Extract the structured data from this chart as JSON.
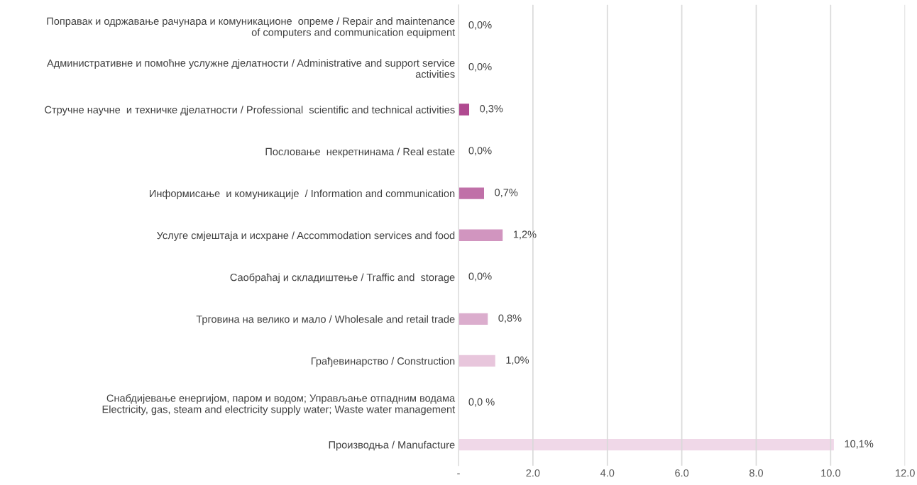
{
  "chart_data": {
    "type": "bar",
    "orientation": "horizontal",
    "categories": [
      "Поправак и одржавање рачунара и комуникационе  опреме / Repair and maintenance\nof computers and communication equipment",
      "Административне и помоћне услужне дјелатности / Administrative and support service\nactivities",
      "Стручне научне  и техничке дјелатности / Professional  scientific and technical activities",
      "Пословање  некретнинама / Real estate",
      "Информисање  и комуникације  / Information and communication",
      "Услуге смјештаја и исхране / Accommodation services and food",
      "Саобраћај и складиштење / Traffic and  storage",
      "Трговина на велико и мало / Wholesale and retail trade",
      "Грађевинарство / Construction",
      "Снабдијевање енергијом, паром и водом; Управљање отпадним водама\nElectricity, gas, steam and electricity supply water; Waste water management",
      "Производња / Manufacture"
    ],
    "values": [
      0.0,
      0.0,
      0.3,
      0.0,
      0.7,
      1.2,
      0.0,
      0.8,
      1.0,
      0.0,
      10.1
    ],
    "colors": [
      null,
      null,
      "#b04a90",
      null,
      "#c070a8",
      "#d195bf",
      null,
      "#dbadcd",
      "#e8c6dc",
      null,
      "#f0d8e8"
    ],
    "value_labels": [
      "0,0%",
      "0,0%",
      "0,3%",
      "0,0%",
      "0,7%",
      "1,2%",
      "0,0%",
      "0,8%",
      "1,0%",
      "0,0 %",
      "10,1%"
    ],
    "xlim": [
      0,
      12
    ],
    "xticks": [
      {
        "value": 0,
        "label": "-"
      },
      {
        "value": 2,
        "label": "2.0"
      },
      {
        "value": 4,
        "label": "4.0"
      },
      {
        "value": 6,
        "label": "6.0"
      },
      {
        "value": 8,
        "label": "8.0"
      },
      {
        "value": 10,
        "label": "10.0"
      },
      {
        "value": 12,
        "label": "12.0"
      }
    ],
    "grid": "x"
  }
}
